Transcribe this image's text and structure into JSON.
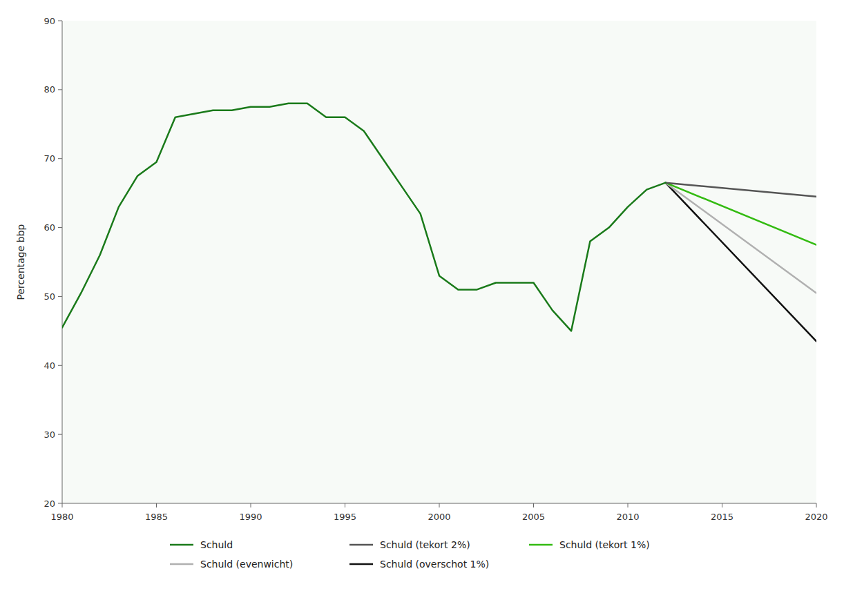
{
  "chart_data": {
    "type": "line",
    "ylabel": "Percentage bbp",
    "xlim": [
      1980,
      2020
    ],
    "ylim": [
      20,
      90
    ],
    "xticks": [
      1980,
      1985,
      1990,
      1995,
      2000,
      2005,
      2010,
      2015,
      2020
    ],
    "yticks": [
      20,
      30,
      40,
      50,
      60,
      70,
      80,
      90
    ],
    "grid": false,
    "legend": "bottom",
    "series": [
      {
        "name": "Schuld",
        "color": "#1a7a1a",
        "x": [
          1980,
          1981,
          1982,
          1983,
          1984,
          1985,
          1986,
          1987,
          1988,
          1989,
          1990,
          1991,
          1992,
          1993,
          1994,
          1995,
          1996,
          1997,
          1998,
          1999,
          2000,
          2001,
          2002,
          2003,
          2004,
          2005,
          2006,
          2007,
          2008,
          2009,
          2010,
          2011,
          2012
        ],
        "values": [
          45.5,
          50.5,
          56,
          63,
          67.5,
          69.5,
          76,
          76.5,
          77,
          77,
          77.5,
          77.5,
          78,
          78,
          76,
          76,
          74,
          70,
          66,
          62,
          53,
          51,
          51,
          52,
          52,
          52,
          48,
          45,
          58,
          60,
          63,
          65.5,
          66.5
        ]
      },
      {
        "name": "Schuld (tekort 2%)",
        "color": "#555555",
        "x": [
          2012,
          2020
        ],
        "values": [
          66.5,
          64.5
        ]
      },
      {
        "name": "Schuld (tekort 1%)",
        "color": "#33bb11",
        "x": [
          2012,
          2020
        ],
        "values": [
          66.5,
          57.5
        ]
      },
      {
        "name": "Schuld (evenwicht)",
        "color": "#b0b0b0",
        "x": [
          2012,
          2020
        ],
        "values": [
          66.5,
          50.5
        ]
      },
      {
        "name": "Schuld (overschot 1%)",
        "color": "#111111",
        "x": [
          2012,
          2020
        ],
        "values": [
          66.5,
          43.5
        ]
      }
    ]
  }
}
